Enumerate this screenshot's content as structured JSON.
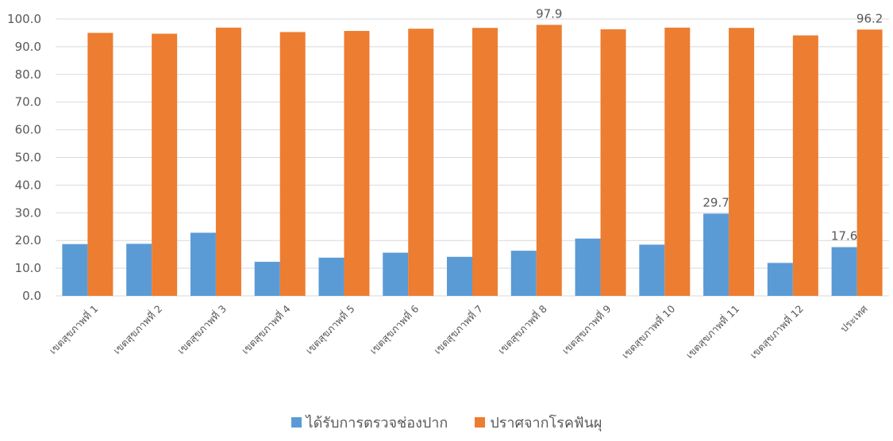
{
  "colors": {
    "series1": "#5B9BD5",
    "series2": "#ED7D31",
    "grid": "#D9D9D9",
    "text": "#595959"
  },
  "chart_data": {
    "type": "bar",
    "title": "",
    "xlabel": "",
    "ylabel": "",
    "ylim": [
      0,
      100
    ],
    "yticks": [
      "0.0",
      "10.0",
      "20.0",
      "30.0",
      "40.0",
      "50.0",
      "60.0",
      "70.0",
      "80.0",
      "90.0",
      "100.0"
    ],
    "grid": true,
    "legend_position": "bottom",
    "categories": [
      "เขตสุขภาพที่ 1",
      "เขตสุขภาพที่ 2",
      "เขตสุขภาพที่ 3",
      "เขตสุขภาพที่ 4",
      "เขตสุขภาพที่ 5",
      "เขตสุขภาพที่ 6",
      "เขตสุขภาพที่ 7",
      "เขตสุขภาพที่ 8",
      "เขตสุขภาพที่ 9",
      "เขตสุขภาพที่ 10",
      "เขตสุขภาพที่ 11",
      "เขตสุขภาพที่ 12",
      "ประเทศ"
    ],
    "series": [
      {
        "name": "ได้รับการตรวจช่องปาก",
        "values": [
          18.7,
          18.8,
          22.8,
          12.3,
          13.8,
          15.6,
          14.1,
          16.3,
          20.7,
          18.5,
          29.7,
          11.9,
          17.6
        ]
      },
      {
        "name": "ปราศจากโรคฟันผุ",
        "values": [
          95.0,
          94.7,
          96.9,
          95.3,
          95.7,
          96.5,
          96.8,
          97.9,
          96.3,
          96.9,
          96.8,
          94.1,
          96.2
        ]
      }
    ],
    "data_labels": [
      {
        "series": 0,
        "index": 10,
        "text": "29.7"
      },
      {
        "series": 0,
        "index": 12,
        "text": "17.6"
      },
      {
        "series": 1,
        "index": 7,
        "text": "97.9"
      },
      {
        "series": 1,
        "index": 12,
        "text": "96.2"
      }
    ]
  }
}
